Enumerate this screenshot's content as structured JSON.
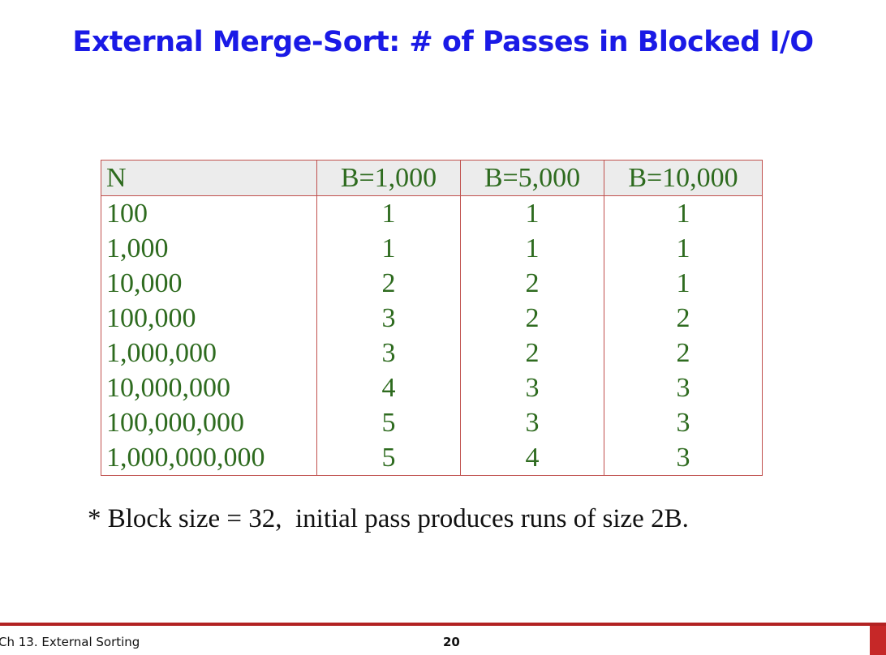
{
  "title": "External Merge-Sort: # of Passes in Blocked I/O",
  "table": {
    "header": [
      "N",
      "B=1,000",
      "B=5,000",
      "B=10,000"
    ],
    "rows": [
      [
        "100",
        "1",
        "1",
        "1"
      ],
      [
        "1,000",
        "1",
        "1",
        "1"
      ],
      [
        "10,000",
        "2",
        "2",
        "1"
      ],
      [
        "100,000",
        "3",
        "2",
        "2"
      ],
      [
        "1,000,000",
        "3",
        "2",
        "2"
      ],
      [
        "10,000,000",
        "4",
        "3",
        "3"
      ],
      [
        "100,000,000",
        "5",
        "3",
        "3"
      ],
      [
        "1,000,000,000",
        "5",
        "4",
        "3"
      ]
    ]
  },
  "footnote": "* Block size = 32,  initial pass produces runs of size 2B.",
  "footer": {
    "course": "Ch 13. External Sorting",
    "page": "20"
  }
}
